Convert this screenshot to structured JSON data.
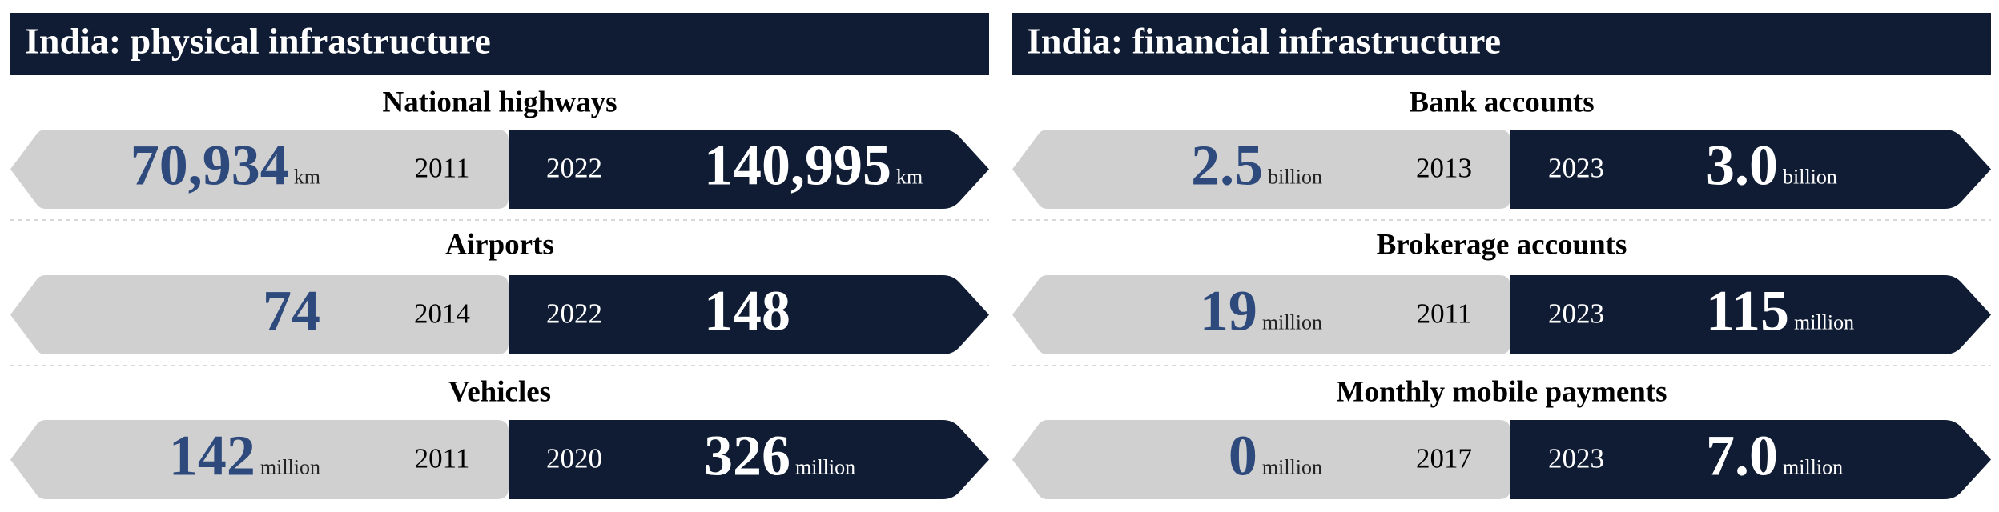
{
  "panels": [
    {
      "title": "India: physical infrastructure",
      "items": [
        {
          "label": "National highways",
          "left": {
            "value": "70,934",
            "unit": "km",
            "year": "2011"
          },
          "right": {
            "value": "140,995",
            "unit": "km",
            "year": "2022"
          }
        },
        {
          "label": "Airports",
          "left": {
            "value": "74",
            "year": "2014"
          },
          "right": {
            "value": "148",
            "year": "2022"
          }
        },
        {
          "label": "Vehicles",
          "left": {
            "value": "142",
            "unit": "million",
            "year": "2011"
          },
          "right": {
            "value": "326",
            "unit": "million",
            "year": "2020"
          }
        }
      ]
    },
    {
      "title": "India: financial infrastructure",
      "items": [
        {
          "label": "Bank accounts",
          "left": {
            "value": "2.5",
            "unit": "billion",
            "year": "2013"
          },
          "right": {
            "value": "3.0",
            "unit": "billion",
            "year": "2023"
          }
        },
        {
          "label": "Brokerage accounts",
          "left": {
            "value": "19",
            "unit": "million",
            "year": "2011"
          },
          "right": {
            "value": "115",
            "unit": "million",
            "year": "2023"
          }
        },
        {
          "label": "Monthly mobile payments",
          "left": {
            "value": "0",
            "unit": "million",
            "year": "2017"
          },
          "right": {
            "value": "7.0",
            "unit": "million",
            "year": "2023"
          }
        }
      ]
    }
  ]
}
